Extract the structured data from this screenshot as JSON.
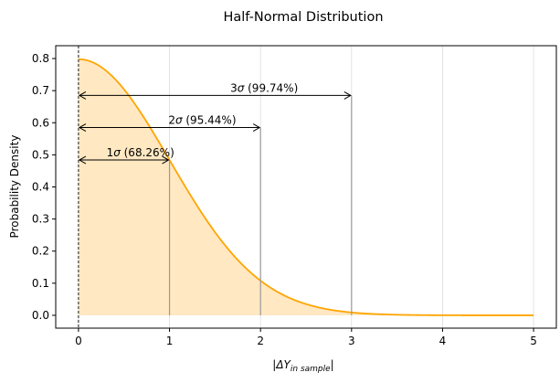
{
  "chart_data": {
    "type": "line",
    "title": "Half-Normal Distribution",
    "xlabel": "|ΔY",
    "xlabel_subscript": "in sample",
    "xlabel_suffix": "|",
    "ylabel": "Probability Density",
    "xlim": [
      -0.25,
      5.25
    ],
    "ylim": [
      -0.04,
      0.84
    ],
    "xticks": [
      0,
      1,
      2,
      3,
      4,
      5
    ],
    "yticks": [
      0.0,
      0.1,
      0.2,
      0.3,
      0.4,
      0.5,
      0.6,
      0.7,
      0.8
    ],
    "sigma": 1,
    "grid": "x-only",
    "curve_color": "#ffa500",
    "fill_color": "#ffe8c2",
    "series": [
      {
        "x": [
          0,
          0.25,
          0.5,
          0.75,
          1.0,
          1.25,
          1.5,
          1.75,
          2.0,
          2.25,
          2.5,
          2.75,
          3.0,
          3.5,
          4.0,
          4.5,
          5.0
        ],
        "values": [
          0.798,
          0.774,
          0.704,
          0.602,
          0.484,
          0.365,
          0.259,
          0.172,
          0.108,
          0.063,
          0.035,
          0.018,
          0.009,
          0.002,
          0.0003,
          3e-05,
          3e-06
        ]
      }
    ],
    "annotations": [
      {
        "label_prefix": "1",
        "label_sym": "σ",
        "label_rest": " (68.26%)",
        "x_end": 1,
        "y": 0.484
      },
      {
        "label_prefix": "2",
        "label_sym": "σ",
        "label_rest": " (95.44%)",
        "x_end": 2,
        "y": 0.585
      },
      {
        "label_prefix": "3",
        "label_sym": "σ",
        "label_rest": " (99.74%)",
        "x_end": 3,
        "y": 0.685
      }
    ]
  }
}
